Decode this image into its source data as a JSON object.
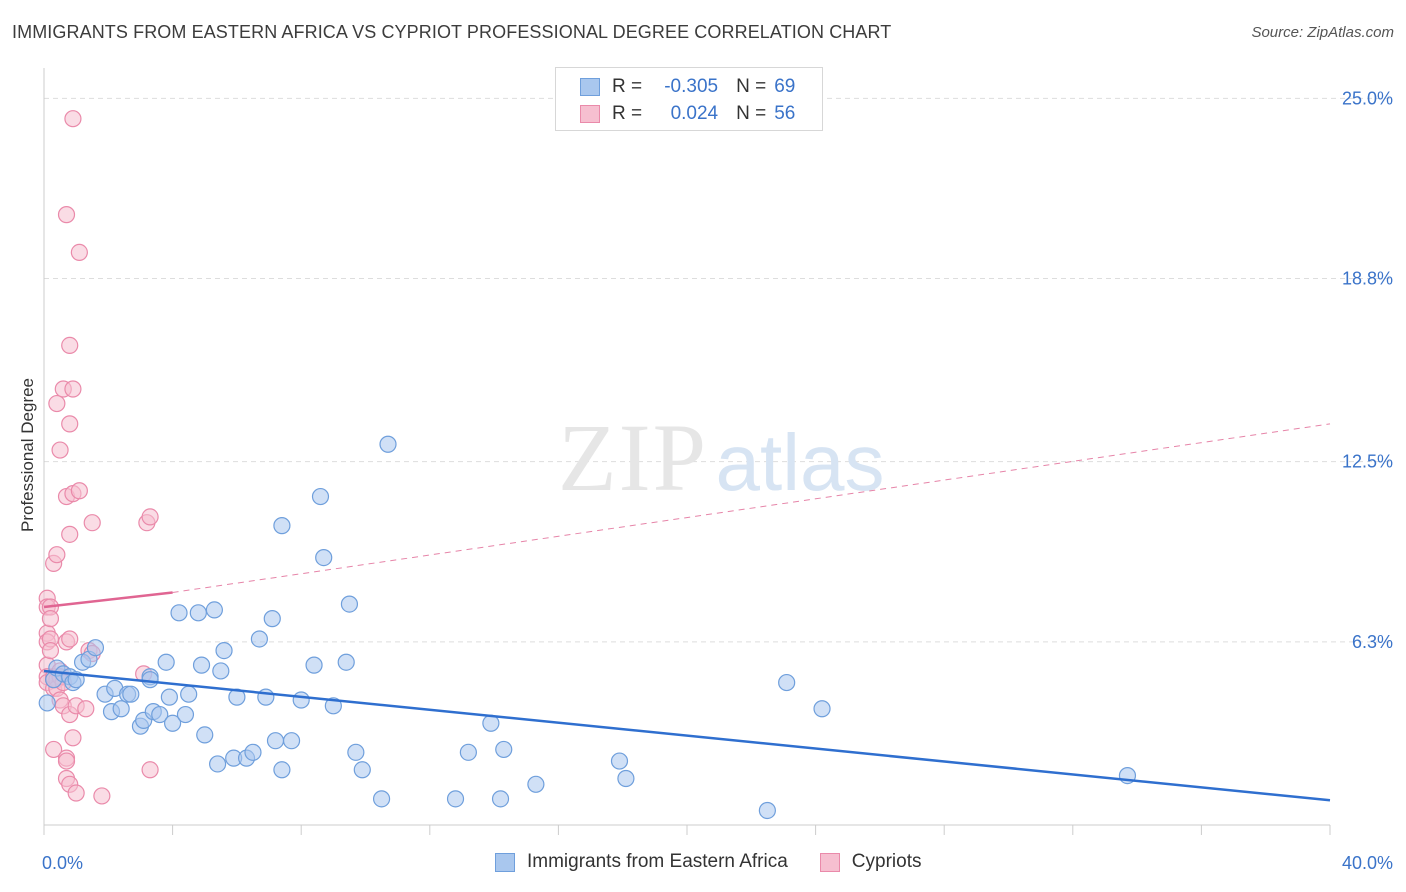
{
  "title": "IMMIGRANTS FROM EASTERN AFRICA VS CYPRIOT PROFESSIONAL DEGREE CORRELATION CHART",
  "source": "Source: ZipAtlas.com",
  "watermark": {
    "zip": "ZIP",
    "atlas": "atlas"
  },
  "legend": {
    "rows": [
      {
        "r_label": "R =",
        "r_value": "-0.305",
        "n_label": "N =",
        "n_value": "69"
      },
      {
        "r_label": "R =",
        "r_value": "0.024",
        "n_label": "N =",
        "n_value": "56"
      }
    ]
  },
  "colors": {
    "blue_fill": "#a9c7ee",
    "blue_stroke": "#6f9fdc",
    "blue_line": "#2f6fcf",
    "pink_fill": "#f6bfd0",
    "pink_stroke": "#ea8aaa",
    "pink_line": "#e06592",
    "grid": "#dddddd",
    "axis_text": "#3a73c9"
  },
  "chart_data": {
    "type": "scatter",
    "title": "IMMIGRANTS FROM EASTERN AFRICA VS CYPRIOT PROFESSIONAL DEGREE CORRELATION CHART",
    "xlabel": "",
    "ylabel": "Professional Degree",
    "xlim": [
      0,
      40
    ],
    "ylim": [
      0,
      25.7
    ],
    "x_tick_labels": [
      "0.0%",
      "40.0%"
    ],
    "y_ticks": [
      6.3,
      12.5,
      18.8,
      25.0
    ],
    "y_tick_labels": [
      "6.3%",
      "12.5%",
      "18.8%",
      "25.0%"
    ],
    "grid": true,
    "series": [
      {
        "name": "Immigrants from Eastern Africa",
        "color": "#a9c7ee",
        "r": -0.305,
        "n": 69,
        "trend": {
          "x": [
            0,
            40
          ],
          "y": [
            5.3,
            0.85
          ],
          "style": "solid"
        },
        "points": [
          [
            0.1,
            4.2
          ],
          [
            0.3,
            5.0
          ],
          [
            0.4,
            5.4
          ],
          [
            0.6,
            5.2
          ],
          [
            0.8,
            5.1
          ],
          [
            0.9,
            4.9
          ],
          [
            1.0,
            5.0
          ],
          [
            1.2,
            5.6
          ],
          [
            1.4,
            5.7
          ],
          [
            1.6,
            6.1
          ],
          [
            1.9,
            4.5
          ],
          [
            2.1,
            3.9
          ],
          [
            2.2,
            4.7
          ],
          [
            2.4,
            4.0
          ],
          [
            2.6,
            4.5
          ],
          [
            2.7,
            4.5
          ],
          [
            3.0,
            3.4
          ],
          [
            3.1,
            3.6
          ],
          [
            3.3,
            5.1
          ],
          [
            3.4,
            3.9
          ],
          [
            3.6,
            3.8
          ],
          [
            3.8,
            5.6
          ],
          [
            3.9,
            4.4
          ],
          [
            4.0,
            3.5
          ],
          [
            4.2,
            7.3
          ],
          [
            4.4,
            3.8
          ],
          [
            4.5,
            4.5
          ],
          [
            4.8,
            7.3
          ],
          [
            4.9,
            5.5
          ],
          [
            5.0,
            3.1
          ],
          [
            5.3,
            7.4
          ],
          [
            5.4,
            2.1
          ],
          [
            5.5,
            5.3
          ],
          [
            5.6,
            6.0
          ],
          [
            5.9,
            2.3
          ],
          [
            6.0,
            4.4
          ],
          [
            6.3,
            2.3
          ],
          [
            6.5,
            2.5
          ],
          [
            6.7,
            6.4
          ],
          [
            6.9,
            4.4
          ],
          [
            7.1,
            7.1
          ],
          [
            7.2,
            2.9
          ],
          [
            7.4,
            10.3
          ],
          [
            7.4,
            1.9
          ],
          [
            7.7,
            2.9
          ],
          [
            8.0,
            4.3
          ],
          [
            8.4,
            5.5
          ],
          [
            8.6,
            11.3
          ],
          [
            8.7,
            9.2
          ],
          [
            9.0,
            4.1
          ],
          [
            9.4,
            5.6
          ],
          [
            9.5,
            7.6
          ],
          [
            9.7,
            2.5
          ],
          [
            9.9,
            1.9
          ],
          [
            10.5,
            0.9
          ],
          [
            10.7,
            13.1
          ],
          [
            12.8,
            0.9
          ],
          [
            13.2,
            2.5
          ],
          [
            13.9,
            3.5
          ],
          [
            14.2,
            0.9
          ],
          [
            14.3,
            2.6
          ],
          [
            15.3,
            1.4
          ],
          [
            17.9,
            2.2
          ],
          [
            18.1,
            1.6
          ],
          [
            22.5,
            0.5
          ],
          [
            23.1,
            4.9
          ],
          [
            24.2,
            4.0
          ],
          [
            33.7,
            1.7
          ],
          [
            3.3,
            5.0
          ]
        ]
      },
      {
        "name": "Cypriots",
        "color": "#f6bfd0",
        "r": 0.024,
        "n": 56,
        "trend": {
          "x": [
            0,
            4.0,
            40
          ],
          "y": [
            7.5,
            8.0,
            13.8
          ],
          "style": "solid-then-dashed"
        },
        "points": [
          [
            0.1,
            7.8
          ],
          [
            0.1,
            7.5
          ],
          [
            0.1,
            6.6
          ],
          [
            0.1,
            6.3
          ],
          [
            0.1,
            5.5
          ],
          [
            0.1,
            5.1
          ],
          [
            0.1,
            4.9
          ],
          [
            0.2,
            7.5
          ],
          [
            0.2,
            7.1
          ],
          [
            0.2,
            6.4
          ],
          [
            0.2,
            6.0
          ],
          [
            0.3,
            9.0
          ],
          [
            0.3,
            5.1
          ],
          [
            0.3,
            4.7
          ],
          [
            0.3,
            2.6
          ],
          [
            0.4,
            14.5
          ],
          [
            0.4,
            9.3
          ],
          [
            0.4,
            5.0
          ],
          [
            0.4,
            4.7
          ],
          [
            0.5,
            12.9
          ],
          [
            0.5,
            5.3
          ],
          [
            0.5,
            5.1
          ],
          [
            0.5,
            4.3
          ],
          [
            0.6,
            15.0
          ],
          [
            0.6,
            4.9
          ],
          [
            0.6,
            4.1
          ],
          [
            0.7,
            21.0
          ],
          [
            0.7,
            11.3
          ],
          [
            0.7,
            6.3
          ],
          [
            0.7,
            2.3
          ],
          [
            0.7,
            2.2
          ],
          [
            0.7,
            1.6
          ],
          [
            0.8,
            16.5
          ],
          [
            0.8,
            13.8
          ],
          [
            0.8,
            10.0
          ],
          [
            0.8,
            6.4
          ],
          [
            0.8,
            3.8
          ],
          [
            0.8,
            1.4
          ],
          [
            0.9,
            24.3
          ],
          [
            0.9,
            15.0
          ],
          [
            0.9,
            11.4
          ],
          [
            0.9,
            3.0
          ],
          [
            1.0,
            4.1
          ],
          [
            1.0,
            1.1
          ],
          [
            1.1,
            19.7
          ],
          [
            1.1,
            11.5
          ],
          [
            1.3,
            4.0
          ],
          [
            1.4,
            6.0
          ],
          [
            1.5,
            5.9
          ],
          [
            1.5,
            10.4
          ],
          [
            1.8,
            1.0
          ],
          [
            3.1,
            5.2
          ],
          [
            3.2,
            10.4
          ],
          [
            3.3,
            10.6
          ],
          [
            3.3,
            1.9
          ],
          [
            0.3,
            5.0
          ]
        ]
      }
    ]
  },
  "bottom_legend": [
    "Immigrants from Eastern Africa",
    "Cypriots"
  ]
}
